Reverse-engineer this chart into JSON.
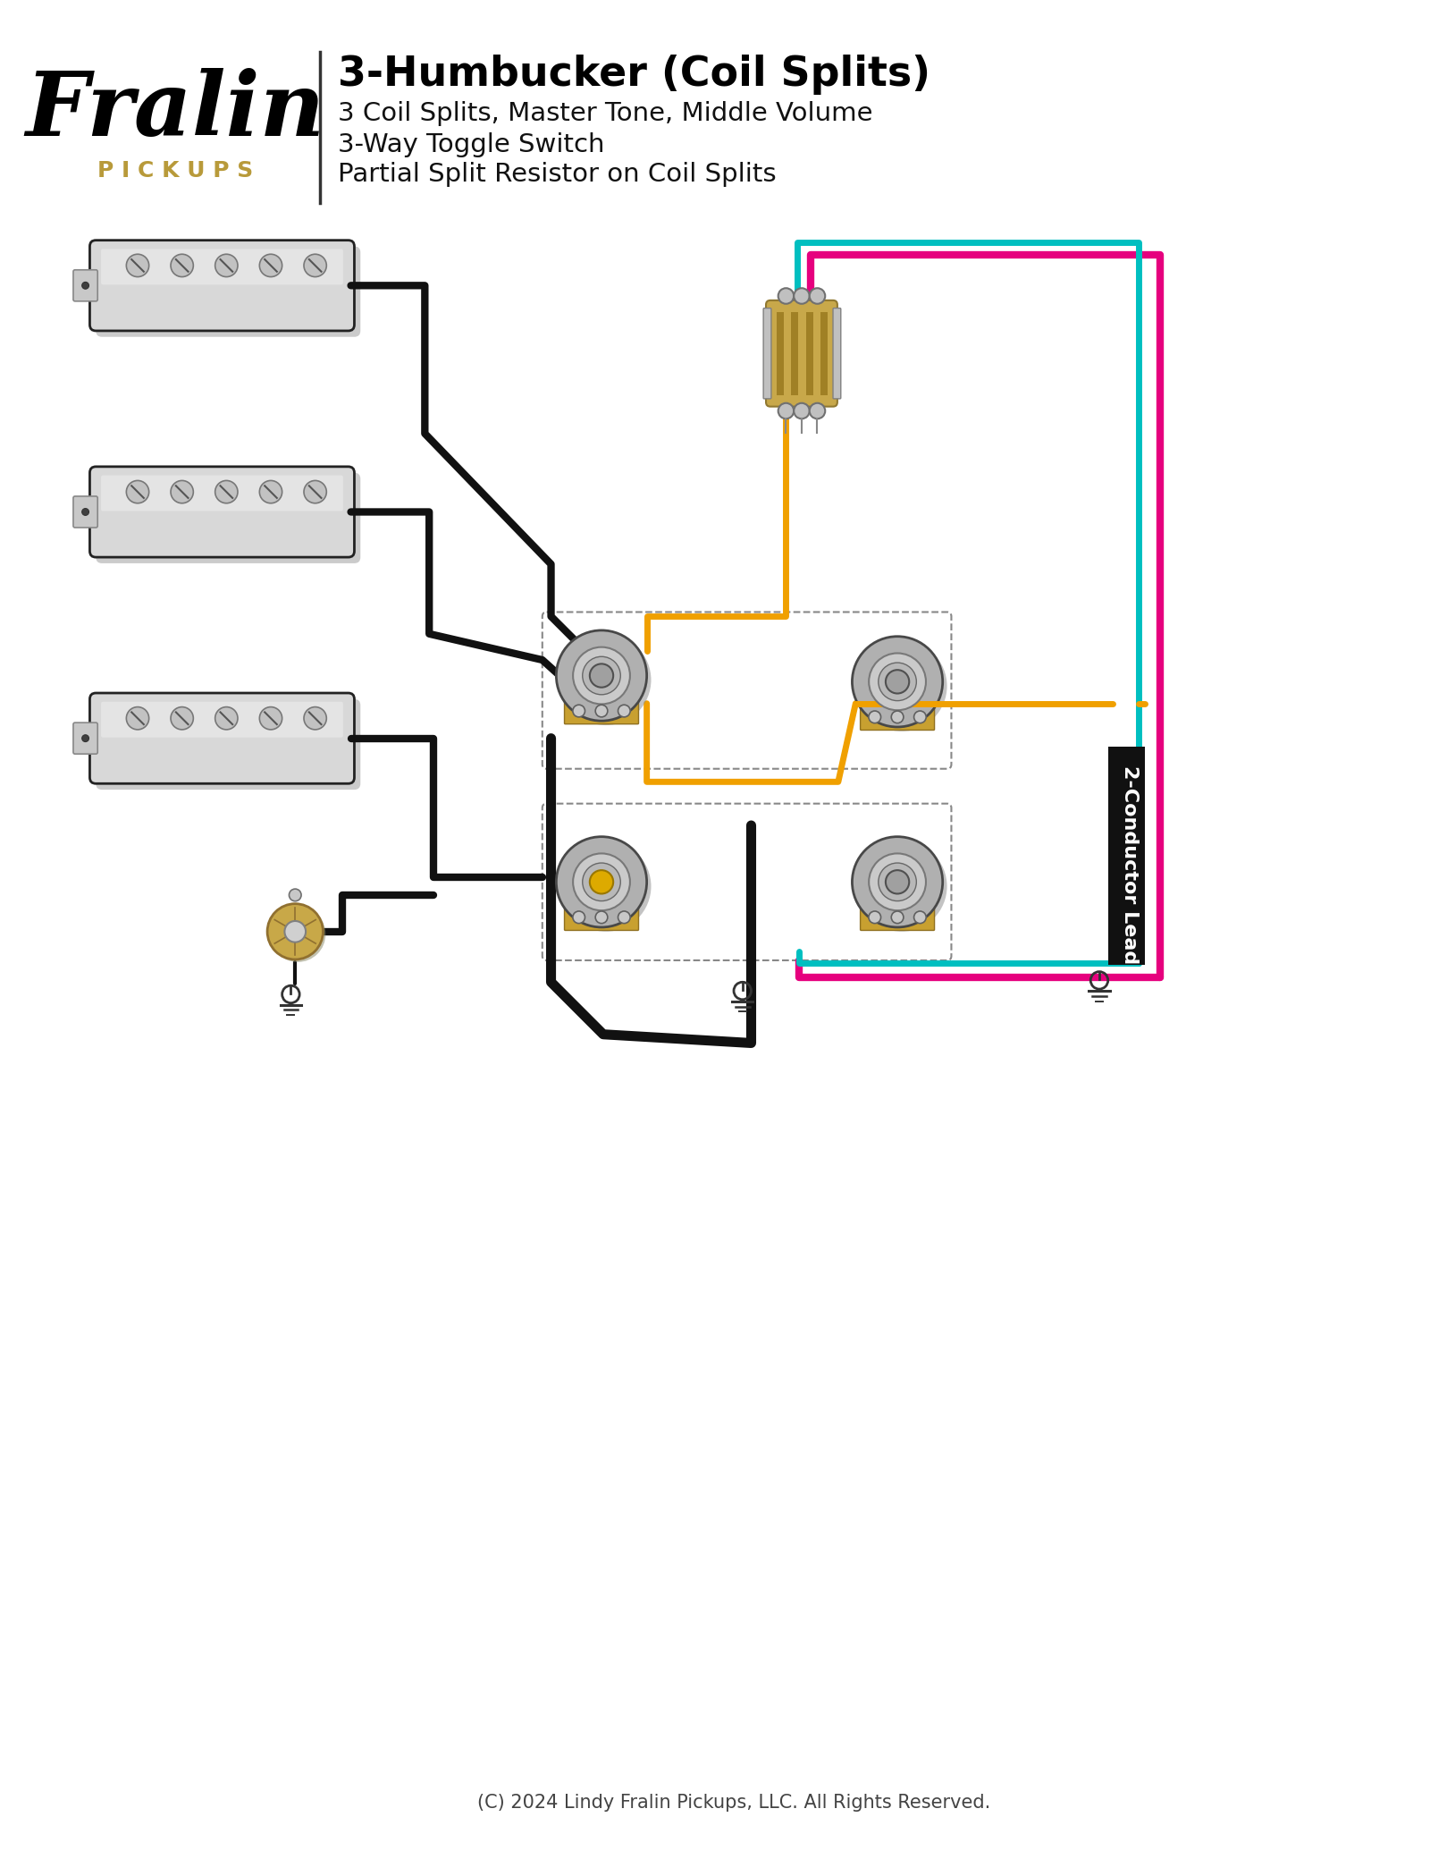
{
  "title": "3-Humbucker (Coil Splits)",
  "subtitle1": "3 Coil Splits, Master Tone, Middle Volume",
  "subtitle2": "3-Way Toggle Switch",
  "subtitle3": "Partial Split Resistor on Coil Splits",
  "copyright": "(C) 2024 Lindy Fralin Pickups, LLC. All Rights Reserved.",
  "bg_color": "#ffffff",
  "gold_color": "#b89a3a",
  "wire_black": "#111111",
  "wire_pink": "#e6007e",
  "wire_cyan": "#00bfc0",
  "wire_orange": "#f0a000",
  "pickup_silver": "#d8d8d8",
  "pickup_dark": "#222222",
  "switch_tan": "#c8a84a",
  "pot_silver": "#b0b0b0",
  "lug_color": "#c8c8c8",
  "shadow_color": "#999999"
}
